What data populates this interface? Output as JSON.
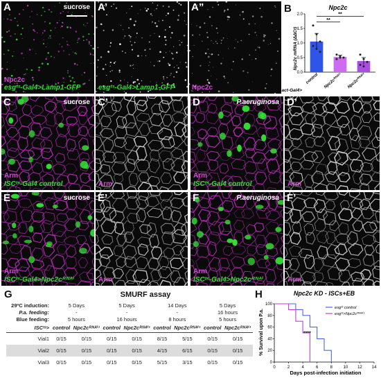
{
  "panels": {
    "A": {
      "label": "A",
      "top_label": "sucrose",
      "bottom_lines": [
        "Npc2c",
        "esgᵗˢ-Gal4>Lamp1-GFP"
      ]
    },
    "A1": {
      "label": "A’",
      "bottom_lines": [
        "esgᵗˢ-Gal4>Lamp1-GFP"
      ]
    },
    "A2": {
      "label": "A”",
      "bottom_lines": [
        "Npc2c"
      ]
    },
    "C": {
      "label": "C",
      "top_label": "sucrose",
      "bottom_lines": [
        "Arm",
        "ISCᵗˢ-Gal4 control"
      ]
    },
    "C1": {
      "label": "C’",
      "bottom_lines": [
        "Arm"
      ]
    },
    "D": {
      "label": "D",
      "top_label": "P.aeruginosa",
      "bottom_lines": [
        "Arm",
        "ISCᵗˢ-Gal4 control"
      ]
    },
    "D1": {
      "label": "D’",
      "bottom_lines": [
        "Arm"
      ]
    },
    "E": {
      "label": "E",
      "top_label": "sucrose",
      "bottom_lines": [
        "Arm",
        "ISCᵗˢ-Gal4>Npc2cᴿᴺᴬⁱ"
      ]
    },
    "E1": {
      "label": "E’",
      "bottom_lines": [
        "Arm"
      ]
    },
    "F": {
      "label": "F",
      "top_label": "P.aeruginosa",
      "bottom_lines": [
        "Arm",
        "ISCᵗˢ-Gal4>Npc2cᴿᴺᴬⁱ"
      ]
    },
    "F1": {
      "label": "F’",
      "bottom_lines": [
        "Arm"
      ]
    }
  },
  "chart_data": [
    {
      "type": "bar",
      "panel_label": "B",
      "title": "Npc2c",
      "ylabel": "Npc2c mRNA (ΔΔCt)",
      "xgroup_label": "act-Gal4>",
      "categories": [
        "control",
        "Npc2cᴿᴺᴬⁱ¹",
        "Npc2cᴿᴺᴬⁱ²"
      ],
      "values": [
        1.05,
        0.52,
        0.38
      ],
      "errors": [
        0.28,
        0.06,
        0.12
      ],
      "points": [
        [
          1.6,
          1.3,
          1.05,
          0.9,
          0.8,
          0.7
        ],
        [
          0.6,
          0.55,
          0.5,
          0.45,
          0.5
        ],
        [
          0.6,
          0.45,
          0.35,
          0.25,
          0.2
        ]
      ],
      "colors": [
        "#2f55e8",
        "#cc6cf0",
        "#a64fe0"
      ],
      "ylim": [
        0,
        2
      ],
      "yticks": [
        0,
        0.5,
        1,
        1.5,
        2
      ],
      "significance": [
        "**",
        "**"
      ]
    },
    {
      "type": "line",
      "panel_label": "H",
      "title": "Npc2c KD - ISCs+EB",
      "xlabel": "Days post-infection initiation",
      "ylabel": "% Survival upon P.a.",
      "xlim": [
        0,
        14
      ],
      "ylim": [
        0,
        100
      ],
      "xticks": [
        0,
        2,
        4,
        6,
        8,
        10,
        12,
        14
      ],
      "yticks": [
        0,
        20,
        40,
        60,
        80,
        100
      ],
      "series": [
        {
          "name": "esgᵗˢ control",
          "color": "#4a67e6",
          "steps": [
            [
              0,
              100
            ],
            [
              3,
              100
            ],
            [
              3,
              90
            ],
            [
              4,
              90
            ],
            [
              4,
              80
            ],
            [
              5,
              80
            ],
            [
              5,
              60
            ],
            [
              6,
              60
            ],
            [
              6,
              40
            ],
            [
              7,
              40
            ],
            [
              7,
              20
            ],
            [
              8,
              20
            ],
            [
              8,
              0
            ]
          ]
        },
        {
          "name": "esgᵗˢ>Npc2cᴿᴺᴬⁱ¹",
          "color": "#c040d0",
          "steps": [
            [
              0,
              100
            ],
            [
              2,
              100
            ],
            [
              2,
              90
            ],
            [
              3,
              90
            ],
            [
              3,
              70
            ],
            [
              4,
              70
            ],
            [
              4,
              50
            ],
            [
              5,
              50
            ],
            [
              5,
              0
            ]
          ]
        }
      ],
      "annotation": "****"
    }
  ],
  "table": {
    "panel_label": "G",
    "title": "SMURF assay",
    "rows_meta": [
      {
        "label": "29ºC induction:",
        "values": [
          "5 Days",
          "5 Days",
          "14 Days",
          "5 Days"
        ]
      },
      {
        "label": "P.a. feeding:",
        "values": [
          "-",
          "-",
          "-",
          "16 hours"
        ]
      },
      {
        "label": "Blue feeding:",
        "values": [
          "5 hours",
          "16 hours",
          "8 hours",
          "5 hours"
        ]
      }
    ],
    "row_header": "ISCᵗˢ>",
    "columns": [
      "control",
      "Npc2cᴿᴺᴬⁱ¹",
      "control",
      "Npc2cᴿᴺᴬⁱ¹",
      "control",
      "Npc2cᴿᴺᴬⁱ¹",
      "control",
      "Npc2cᴿᴺᴬⁱ¹"
    ],
    "rows": [
      {
        "label": "Vial1",
        "values": [
          "0/15",
          "0/15",
          "0/15",
          "0/15",
          "8/15",
          "5/15",
          "0/15",
          "0/15"
        ]
      },
      {
        "label": "Vial2",
        "values": [
          "0/15",
          "0/15",
          "0/15",
          "0/15",
          "4/15",
          "6/15",
          "0/15",
          "0/15"
        ]
      },
      {
        "label": "Vial3",
        "values": [
          "0/15",
          "0/15",
          "0/15",
          "0/15",
          "5/15",
          "3/15",
          "0/15",
          "0/15"
        ]
      }
    ]
  },
  "colors": {
    "magenta": "#e040e0",
    "green": "#33dd33",
    "white_channel": "#eeeeee"
  }
}
